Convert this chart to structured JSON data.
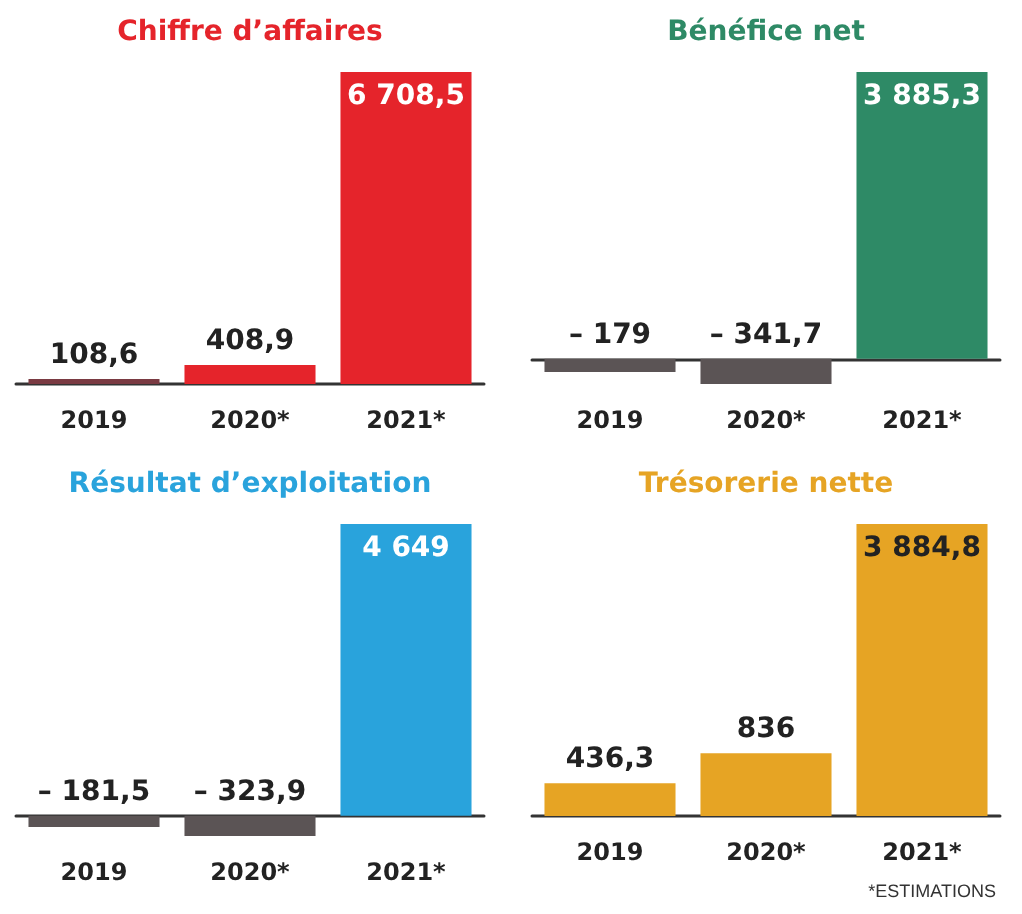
{
  "chart_data": [
    {
      "type": "bar",
      "title": "Chiffre d’affaires",
      "categories": [
        "2019",
        "2020*",
        "2021*"
      ],
      "values": [
        108.6,
        408.9,
        6708.5
      ],
      "colors": [
        "#7a3a42",
        "#e5242b",
        "#e5242b"
      ],
      "value_labels": [
        "108,6",
        "408,9",
        "6 708,5"
      ]
    },
    {
      "type": "bar",
      "title": "Bénéfice net",
      "categories": [
        "2019",
        "2020*",
        "2021*"
      ],
      "values": [
        -179,
        -341.7,
        3885.3
      ],
      "colors": [
        "#5b5455",
        "#5b5455",
        "#2e8a66"
      ],
      "value_labels": [
        "– 179",
        "– 341,7",
        "3 885,3"
      ]
    },
    {
      "type": "bar",
      "title": "Résultat d’exploitation",
      "categories": [
        "2019",
        "2020*",
        "2021*"
      ],
      "values": [
        -181.5,
        -323.9,
        4649
      ],
      "colors": [
        "#5b5455",
        "#5b5455",
        "#29a3dc"
      ],
      "value_labels": [
        "– 181,5",
        "– 323,9",
        "4 649"
      ]
    },
    {
      "type": "bar",
      "title": "Trésorerie nette",
      "categories": [
        "2019",
        "2020*",
        "2021*"
      ],
      "values": [
        436.3,
        836,
        3884.8
      ],
      "colors": [
        "#e6a424",
        "#e6a424",
        "#e6a424"
      ],
      "value_labels": [
        "436,3",
        "836",
        "3 884,8"
      ],
      "annotations": [
        "*ESTIMATIONS"
      ]
    }
  ]
}
